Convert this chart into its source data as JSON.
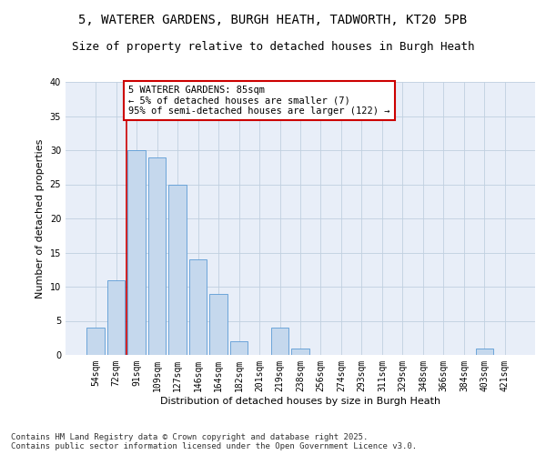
{
  "title1": "5, WATERER GARDENS, BURGH HEATH, TADWORTH, KT20 5PB",
  "title2": "Size of property relative to detached houses in Burgh Heath",
  "xlabel": "Distribution of detached houses by size in Burgh Heath",
  "ylabel": "Number of detached properties",
  "categories": [
    "54sqm",
    "72sqm",
    "91sqm",
    "109sqm",
    "127sqm",
    "146sqm",
    "164sqm",
    "182sqm",
    "201sqm",
    "219sqm",
    "238sqm",
    "256sqm",
    "274sqm",
    "293sqm",
    "311sqm",
    "329sqm",
    "348sqm",
    "366sqm",
    "384sqm",
    "403sqm",
    "421sqm"
  ],
  "values": [
    4,
    11,
    30,
    29,
    25,
    14,
    9,
    2,
    0,
    4,
    1,
    0,
    0,
    0,
    0,
    0,
    0,
    0,
    0,
    1,
    0
  ],
  "bar_color": "#c5d8ed",
  "bar_edge_color": "#5b9bd5",
  "vline_color": "#cc0000",
  "vline_pos": 1.5,
  "annotation_text": "5 WATERER GARDENS: 85sqm\n← 5% of detached houses are smaller (7)\n95% of semi-detached houses are larger (122) →",
  "annotation_box_color": "#ffffff",
  "annotation_box_edge": "#cc0000",
  "ylim": [
    0,
    40
  ],
  "yticks": [
    0,
    5,
    10,
    15,
    20,
    25,
    30,
    35,
    40
  ],
  "grid_color": "#c0d0e0",
  "background_color": "#e8eef8",
  "footer_text": "Contains HM Land Registry data © Crown copyright and database right 2025.\nContains public sector information licensed under the Open Government Licence v3.0.",
  "title_fontsize": 10,
  "title2_fontsize": 9,
  "axis_label_fontsize": 8,
  "tick_fontsize": 7,
  "annot_fontsize": 7.5,
  "footer_fontsize": 6.5
}
